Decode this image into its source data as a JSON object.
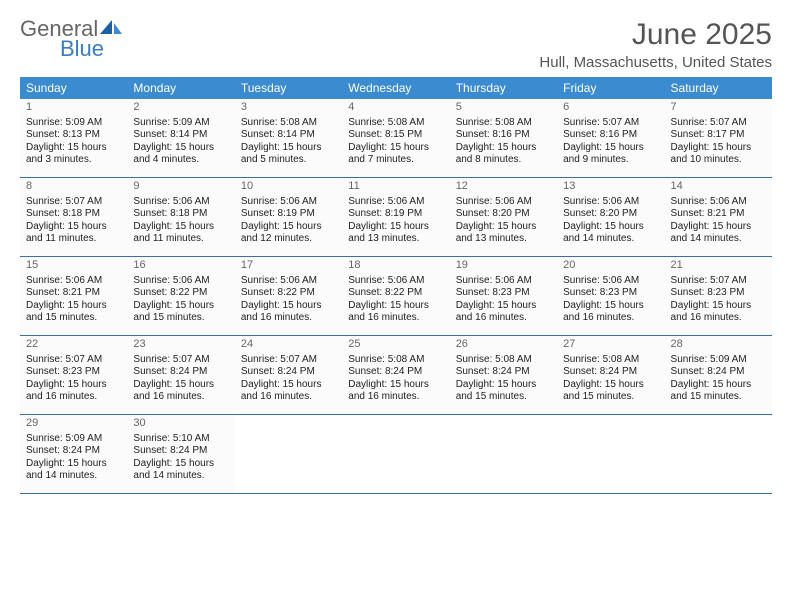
{
  "brand": {
    "text1": "General",
    "text2": "Blue",
    "color_general": "#666666",
    "color_blue": "#3a7cc2"
  },
  "title": "June 2025",
  "location": "Hull, Massachusetts, United States",
  "colors": {
    "header_bg": "#3a8bd0",
    "header_text": "#ffffff",
    "week_rule": "#3a6fa0",
    "day_bg": "#fbfbfb",
    "text": "#222222",
    "title_color": "#555555"
  },
  "fonts": {
    "title_size": 30,
    "location_size": 15,
    "dow_size": 12,
    "daynum_size": 11,
    "body_size": 10
  },
  "days_of_week": [
    "Sunday",
    "Monday",
    "Tuesday",
    "Wednesday",
    "Thursday",
    "Friday",
    "Saturday"
  ],
  "weeks": [
    [
      {
        "n": "1",
        "sunrise": "Sunrise: 5:09 AM",
        "sunset": "Sunset: 8:13 PM",
        "d1": "Daylight: 15 hours",
        "d2": "and 3 minutes."
      },
      {
        "n": "2",
        "sunrise": "Sunrise: 5:09 AM",
        "sunset": "Sunset: 8:14 PM",
        "d1": "Daylight: 15 hours",
        "d2": "and 4 minutes."
      },
      {
        "n": "3",
        "sunrise": "Sunrise: 5:08 AM",
        "sunset": "Sunset: 8:14 PM",
        "d1": "Daylight: 15 hours",
        "d2": "and 5 minutes."
      },
      {
        "n": "4",
        "sunrise": "Sunrise: 5:08 AM",
        "sunset": "Sunset: 8:15 PM",
        "d1": "Daylight: 15 hours",
        "d2": "and 7 minutes."
      },
      {
        "n": "5",
        "sunrise": "Sunrise: 5:08 AM",
        "sunset": "Sunset: 8:16 PM",
        "d1": "Daylight: 15 hours",
        "d2": "and 8 minutes."
      },
      {
        "n": "6",
        "sunrise": "Sunrise: 5:07 AM",
        "sunset": "Sunset: 8:16 PM",
        "d1": "Daylight: 15 hours",
        "d2": "and 9 minutes."
      },
      {
        "n": "7",
        "sunrise": "Sunrise: 5:07 AM",
        "sunset": "Sunset: 8:17 PM",
        "d1": "Daylight: 15 hours",
        "d2": "and 10 minutes."
      }
    ],
    [
      {
        "n": "8",
        "sunrise": "Sunrise: 5:07 AM",
        "sunset": "Sunset: 8:18 PM",
        "d1": "Daylight: 15 hours",
        "d2": "and 11 minutes."
      },
      {
        "n": "9",
        "sunrise": "Sunrise: 5:06 AM",
        "sunset": "Sunset: 8:18 PM",
        "d1": "Daylight: 15 hours",
        "d2": "and 11 minutes."
      },
      {
        "n": "10",
        "sunrise": "Sunrise: 5:06 AM",
        "sunset": "Sunset: 8:19 PM",
        "d1": "Daylight: 15 hours",
        "d2": "and 12 minutes."
      },
      {
        "n": "11",
        "sunrise": "Sunrise: 5:06 AM",
        "sunset": "Sunset: 8:19 PM",
        "d1": "Daylight: 15 hours",
        "d2": "and 13 minutes."
      },
      {
        "n": "12",
        "sunrise": "Sunrise: 5:06 AM",
        "sunset": "Sunset: 8:20 PM",
        "d1": "Daylight: 15 hours",
        "d2": "and 13 minutes."
      },
      {
        "n": "13",
        "sunrise": "Sunrise: 5:06 AM",
        "sunset": "Sunset: 8:20 PM",
        "d1": "Daylight: 15 hours",
        "d2": "and 14 minutes."
      },
      {
        "n": "14",
        "sunrise": "Sunrise: 5:06 AM",
        "sunset": "Sunset: 8:21 PM",
        "d1": "Daylight: 15 hours",
        "d2": "and 14 minutes."
      }
    ],
    [
      {
        "n": "15",
        "sunrise": "Sunrise: 5:06 AM",
        "sunset": "Sunset: 8:21 PM",
        "d1": "Daylight: 15 hours",
        "d2": "and 15 minutes."
      },
      {
        "n": "16",
        "sunrise": "Sunrise: 5:06 AM",
        "sunset": "Sunset: 8:22 PM",
        "d1": "Daylight: 15 hours",
        "d2": "and 15 minutes."
      },
      {
        "n": "17",
        "sunrise": "Sunrise: 5:06 AM",
        "sunset": "Sunset: 8:22 PM",
        "d1": "Daylight: 15 hours",
        "d2": "and 16 minutes."
      },
      {
        "n": "18",
        "sunrise": "Sunrise: 5:06 AM",
        "sunset": "Sunset: 8:22 PM",
        "d1": "Daylight: 15 hours",
        "d2": "and 16 minutes."
      },
      {
        "n": "19",
        "sunrise": "Sunrise: 5:06 AM",
        "sunset": "Sunset: 8:23 PM",
        "d1": "Daylight: 15 hours",
        "d2": "and 16 minutes."
      },
      {
        "n": "20",
        "sunrise": "Sunrise: 5:06 AM",
        "sunset": "Sunset: 8:23 PM",
        "d1": "Daylight: 15 hours",
        "d2": "and 16 minutes."
      },
      {
        "n": "21",
        "sunrise": "Sunrise: 5:07 AM",
        "sunset": "Sunset: 8:23 PM",
        "d1": "Daylight: 15 hours",
        "d2": "and 16 minutes."
      }
    ],
    [
      {
        "n": "22",
        "sunrise": "Sunrise: 5:07 AM",
        "sunset": "Sunset: 8:23 PM",
        "d1": "Daylight: 15 hours",
        "d2": "and 16 minutes."
      },
      {
        "n": "23",
        "sunrise": "Sunrise: 5:07 AM",
        "sunset": "Sunset: 8:24 PM",
        "d1": "Daylight: 15 hours",
        "d2": "and 16 minutes."
      },
      {
        "n": "24",
        "sunrise": "Sunrise: 5:07 AM",
        "sunset": "Sunset: 8:24 PM",
        "d1": "Daylight: 15 hours",
        "d2": "and 16 minutes."
      },
      {
        "n": "25",
        "sunrise": "Sunrise: 5:08 AM",
        "sunset": "Sunset: 8:24 PM",
        "d1": "Daylight: 15 hours",
        "d2": "and 16 minutes."
      },
      {
        "n": "26",
        "sunrise": "Sunrise: 5:08 AM",
        "sunset": "Sunset: 8:24 PM",
        "d1": "Daylight: 15 hours",
        "d2": "and 15 minutes."
      },
      {
        "n": "27",
        "sunrise": "Sunrise: 5:08 AM",
        "sunset": "Sunset: 8:24 PM",
        "d1": "Daylight: 15 hours",
        "d2": "and 15 minutes."
      },
      {
        "n": "28",
        "sunrise": "Sunrise: 5:09 AM",
        "sunset": "Sunset: 8:24 PM",
        "d1": "Daylight: 15 hours",
        "d2": "and 15 minutes."
      }
    ],
    [
      {
        "n": "29",
        "sunrise": "Sunrise: 5:09 AM",
        "sunset": "Sunset: 8:24 PM",
        "d1": "Daylight: 15 hours",
        "d2": "and 14 minutes."
      },
      {
        "n": "30",
        "sunrise": "Sunrise: 5:10 AM",
        "sunset": "Sunset: 8:24 PM",
        "d1": "Daylight: 15 hours",
        "d2": "and 14 minutes."
      },
      {
        "empty": true
      },
      {
        "empty": true
      },
      {
        "empty": true
      },
      {
        "empty": true
      },
      {
        "empty": true
      }
    ]
  ]
}
